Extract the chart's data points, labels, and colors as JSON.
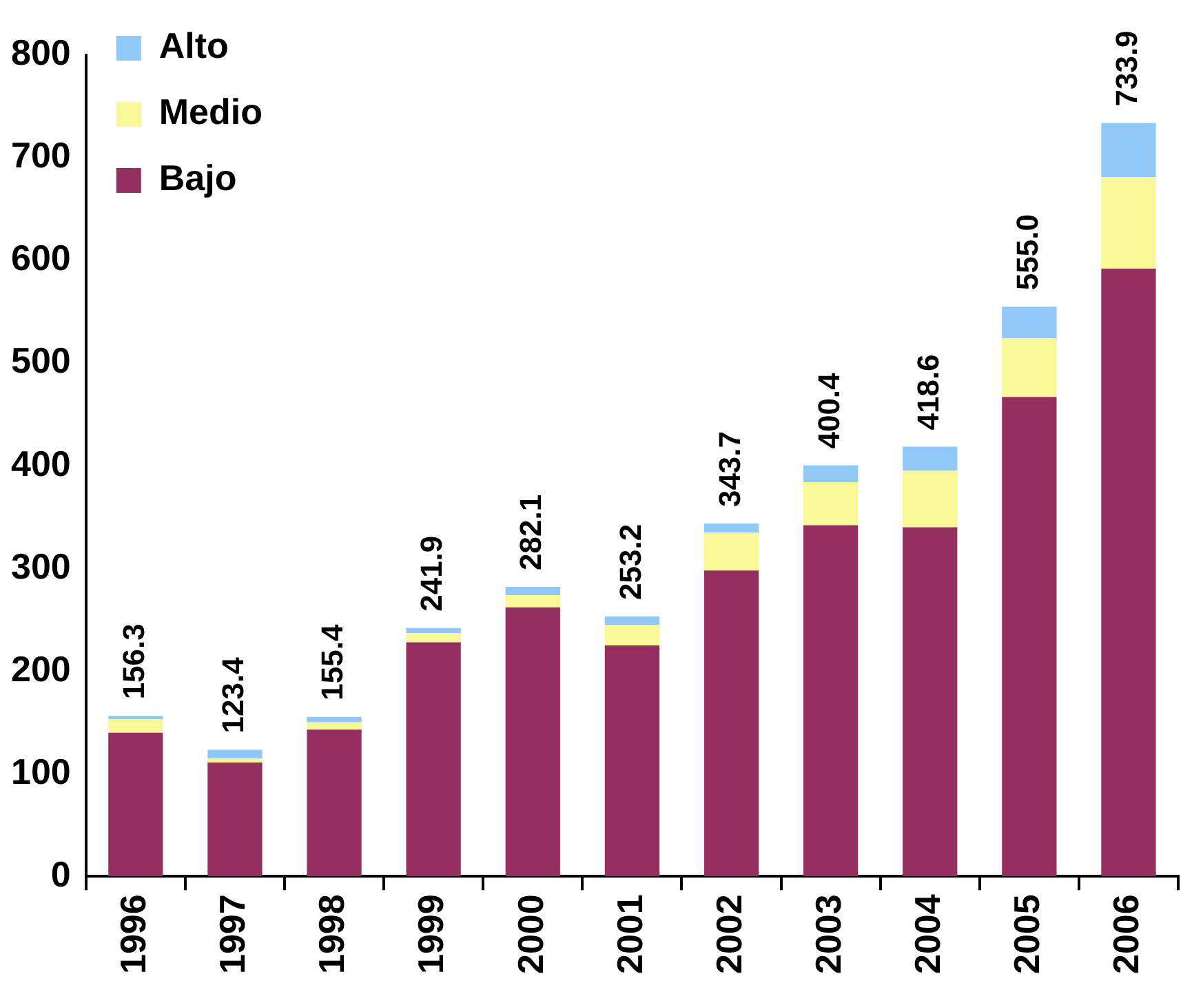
{
  "chart_data": {
    "type": "bar",
    "stacked": true,
    "categories": [
      "1996",
      "1997",
      "1998",
      "1999",
      "2000",
      "2001",
      "2002",
      "2003",
      "2004",
      "2005",
      "2006"
    ],
    "series": [
      {
        "name": "Bajo",
        "color": "#943060",
        "values": [
          140,
          111,
          143,
          228,
          262,
          225,
          298,
          342,
          340,
          467,
          592
        ]
      },
      {
        "name": "Medio",
        "color": "#f8f898",
        "values": [
          13,
          4,
          7,
          9,
          12,
          20,
          37,
          42,
          55,
          57,
          89
        ]
      },
      {
        "name": "Alto",
        "color": "#90c8f8",
        "values": [
          3.3,
          8.4,
          5.4,
          4.9,
          8.1,
          8.2,
          8.7,
          16.4,
          23.6,
          31,
          52.9
        ]
      }
    ],
    "totals": [
      "156.3",
      "123.4",
      "155.4",
      "241.9",
      "282.1",
      "253.2",
      "343.7",
      "400.4",
      "418.6",
      "555.0",
      "733.9"
    ],
    "ylim": [
      0,
      800
    ],
    "yticks": [
      0,
      100,
      200,
      300,
      400,
      500,
      600,
      700,
      800
    ],
    "grid": false,
    "legend": "top left"
  }
}
